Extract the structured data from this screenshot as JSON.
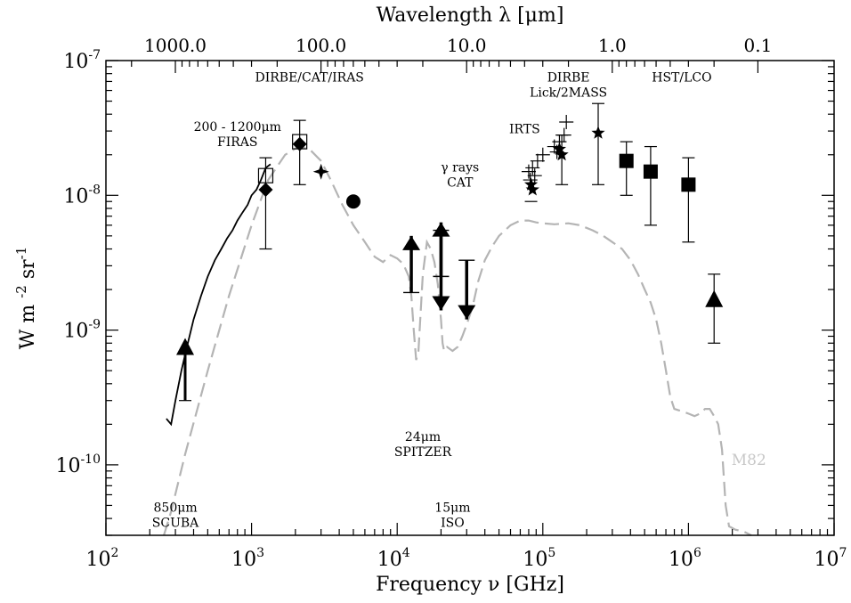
{
  "chart_data": {
    "type": "scatter",
    "title": "",
    "xlabel": "Frequency ν [GHz]",
    "ylabel": "W m -2 sr-1",
    "top_xlabel": "Wavelength λ [μm]",
    "x_scale": "log",
    "y_scale": "log",
    "xlim": [
      100,
      10000000
    ],
    "ylim": [
      3e-11,
      1e-07
    ],
    "x_ticks": [
      {
        "value": 100,
        "base": "10",
        "exp": "2"
      },
      {
        "value": 1000,
        "base": "10",
        "exp": "3"
      },
      {
        "value": 10000,
        "base": "10",
        "exp": "4"
      },
      {
        "value": 100000,
        "base": "10",
        "exp": "5"
      },
      {
        "value": 1000000,
        "base": "10",
        "exp": "6"
      },
      {
        "value": 10000000,
        "base": "10",
        "exp": "7"
      }
    ],
    "y_ticks": [
      {
        "value": 1e-10,
        "base": "10",
        "exp": "-10"
      },
      {
        "value": 1e-09,
        "base": "10",
        "exp": "-9"
      },
      {
        "value": 1e-08,
        "base": "10",
        "exp": "-8"
      },
      {
        "value": 1e-07,
        "base": "10",
        "exp": "-7"
      }
    ],
    "top_ticks": [
      {
        "wavelength_um": 1000,
        "label": "1000.0"
      },
      {
        "wavelength_um": 100,
        "label": "100.0"
      },
      {
        "wavelength_um": 10,
        "label": "10.0"
      },
      {
        "wavelength_um": 1,
        "label": "1.0"
      },
      {
        "wavelength_um": 0.1,
        "label": "0.1"
      }
    ],
    "grid": false,
    "series": [
      {
        "name": "M82",
        "style": "dashed",
        "color": "#b4b4b4",
        "x": [
          250,
          280,
          350,
          500,
          700,
          1000,
          1300,
          1700,
          2100,
          2500,
          3000,
          3500,
          4200,
          5000,
          6000,
          7000,
          8000,
          9000,
          10000,
          11000,
          12000,
          12500,
          13000,
          13500,
          14000,
          15000,
          16000,
          17000,
          18000,
          19000,
          20000,
          20500,
          21000,
          22000,
          24000,
          26000,
          28000,
          30000,
          33000,
          36000,
          40000,
          45000,
          50000,
          60000,
          70000,
          80000,
          90000,
          100000,
          120000,
          150000,
          180000,
          220000,
          260000,
          300000,
          350000,
          400000,
          450000,
          500000,
          550000,
          600000,
          650000,
          700000,
          750000,
          800000,
          900000,
          1000000,
          1100000,
          1200000,
          1300000,
          1400000,
          1500000,
          1600000,
          1700000,
          1800000,
          1900000,
          2100000,
          2400000,
          2700000
        ],
        "y": [
          3e-11,
          4.5e-11,
          1.2e-10,
          5e-10,
          1.8e-09,
          6e-09,
          1.3e-08,
          2e-08,
          2.3e-08,
          2.2e-08,
          1.8e-08,
          1.3e-08,
          8.5e-09,
          6e-09,
          4.5e-09,
          3.5e-09,
          3.2e-09,
          3.6e-09,
          3.4e-09,
          3.1e-09,
          2.5e-09,
          1.8e-09,
          1e-09,
          6e-10,
          7e-10,
          2.6e-09,
          4.5e-09,
          4e-09,
          3.2e-09,
          2.2e-09,
          1.2e-09,
          8e-10,
          7e-10,
          7.5e-10,
          7e-10,
          7.5e-10,
          9e-10,
          1.1e-09,
          1.5e-09,
          2.3e-09,
          3.3e-09,
          4.2e-09,
          5e-09,
          6e-09,
          6.5e-09,
          6.5e-09,
          6.3e-09,
          6.2e-09,
          6.1e-09,
          6.2e-09,
          6e-09,
          5.5e-09,
          5e-09,
          4.5e-09,
          4e-09,
          3.3e-09,
          2.6e-09,
          2e-09,
          1.6e-09,
          1.2e-09,
          8e-10,
          5e-10,
          3.2e-10,
          2.6e-10,
          2.5e-10,
          2.4e-10,
          2.3e-10,
          2.4e-10,
          2.6e-10,
          2.6e-10,
          2.3e-10,
          2e-10,
          1.3e-10,
          5e-11,
          3.5e-11,
          3.3e-11,
          3.2e-11,
          3e-11
        ]
      },
      {
        "name": "FIRAS",
        "style": "solid",
        "color": "#000000",
        "x": [
          260,
          280,
          300,
          330,
          360,
          400,
          450,
          500,
          560,
          620,
          680,
          740,
          800,
          870,
          940,
          1000,
          1080,
          1160,
          1250,
          1350
        ],
        "y": [
          2.2e-10,
          2e-10,
          3e-10,
          5e-10,
          7.5e-10,
          1.2e-09,
          1.8e-09,
          2.5e-09,
          3.3e-09,
          4e-09,
          4.8e-09,
          5.5e-09,
          6.5e-09,
          7.5e-09,
          8.5e-09,
          1e-08,
          1.1e-08,
          1.3e-08,
          1.6e-08,
          1.7e-08
        ]
      }
    ],
    "points": [
      {
        "marker": "triangle-up",
        "x": 350,
        "y": 7.5e-10,
        "err_low": 3e-10,
        "err_high": null,
        "limit": "lower"
      },
      {
        "marker": "diamond",
        "x": 1250,
        "y": 1.1e-08,
        "err_low": 4e-09,
        "err_high": 1.9e-08,
        "limit": null
      },
      {
        "marker": "square-open",
        "x": 1250,
        "y": 1.4e-08,
        "err_low": null,
        "err_high": null,
        "limit": null
      },
      {
        "marker": "square-open",
        "x": 2140,
        "y": 2.5e-08,
        "err_low": null,
        "err_high": null,
        "limit": null
      },
      {
        "marker": "diamond",
        "x": 2140,
        "y": 2.4e-08,
        "err_low": 1.2e-08,
        "err_high": 3.6e-08,
        "limit": null
      },
      {
        "marker": "star4",
        "x": 3000,
        "y": 1.5e-08,
        "err_low": null,
        "err_high": null,
        "limit": null
      },
      {
        "marker": "circle",
        "x": 5000,
        "y": 9e-09,
        "err_low": null,
        "err_high": null,
        "limit": null
      },
      {
        "marker": "arrow-up",
        "x": 12500,
        "y": 1.9e-09,
        "tip": 5e-09,
        "limit": "lower"
      },
      {
        "marker": "arrow-up",
        "x": 20000,
        "y": 2.5e-09,
        "tip": 6.3e-09,
        "limit": "lower"
      },
      {
        "marker": "arrow-down",
        "x": 20000,
        "y": 5.5e-09,
        "tip": 1.4e-09,
        "limit": "upper"
      },
      {
        "marker": "arrow-down",
        "x": 30000,
        "y": 3.3e-09,
        "tip": 1.2e-09,
        "limit": "upper"
      },
      {
        "marker": "cross",
        "x": 80000,
        "y": 1.5e-08,
        "err_low": null,
        "err_high": null,
        "limit": null
      },
      {
        "marker": "cross",
        "x": 82000,
        "y": 1.3e-08,
        "err_low": null,
        "err_high": null,
        "limit": null
      },
      {
        "marker": "cross",
        "x": 85000,
        "y": 1.6e-08,
        "err_low": null,
        "err_high": null,
        "limit": null
      },
      {
        "marker": "cross",
        "x": 88000,
        "y": 1.4e-08,
        "err_low": null,
        "err_high": null,
        "limit": null
      },
      {
        "marker": "cross",
        "x": 92000,
        "y": 1.8e-08,
        "err_low": null,
        "err_high": null,
        "limit": null
      },
      {
        "marker": "cross",
        "x": 100000,
        "y": 2e-08,
        "err_low": null,
        "err_high": null,
        "limit": null
      },
      {
        "marker": "cross",
        "x": 120000,
        "y": 2.3e-08,
        "err_low": null,
        "err_high": null,
        "limit": null
      },
      {
        "marker": "cross",
        "x": 125000,
        "y": 2.1e-08,
        "err_low": null,
        "err_high": null,
        "limit": null
      },
      {
        "marker": "cross",
        "x": 130000,
        "y": 2.5e-08,
        "err_low": null,
        "err_high": null,
        "limit": null
      },
      {
        "marker": "cross",
        "x": 140000,
        "y": 2.8e-08,
        "err_low": null,
        "err_high": null,
        "limit": null
      },
      {
        "marker": "cross",
        "x": 145000,
        "y": 3.5e-08,
        "err_low": null,
        "err_high": null,
        "limit": null
      },
      {
        "marker": "star",
        "x": 83000,
        "y": 1.2e-08,
        "err_low": 9e-09,
        "err_high": null,
        "limit": null
      },
      {
        "marker": "star",
        "x": 85000,
        "y": 1.1e-08,
        "err_low": null,
        "err_high": null,
        "limit": null
      },
      {
        "marker": "star",
        "x": 130000,
        "y": 2.2e-08,
        "err_low": null,
        "err_high": null,
        "limit": null
      },
      {
        "marker": "star",
        "x": 135000,
        "y": 2e-08,
        "err_low": 1.2e-08,
        "err_high": 2.8e-08,
        "limit": null
      },
      {
        "marker": "star",
        "x": 240000,
        "y": 2.9e-08,
        "err_low": 1.2e-08,
        "err_high": 4.8e-08,
        "limit": null
      },
      {
        "marker": "square",
        "x": 375000,
        "y": 1.8e-08,
        "err_low": 1e-08,
        "err_high": 2.5e-08,
        "limit": null
      },
      {
        "marker": "square",
        "x": 550000,
        "y": 1.5e-08,
        "err_low": 6e-09,
        "err_high": 2.3e-08,
        "limit": null
      },
      {
        "marker": "square",
        "x": 1000000,
        "y": 1.2e-08,
        "err_low": 4.5e-09,
        "err_high": 1.9e-08,
        "limit": null
      },
      {
        "marker": "triangle-up",
        "x": 1500000,
        "y": 1.7e-09,
        "err_low": 8e-10,
        "err_high": 2.6e-09,
        "limit": null
      }
    ],
    "annotations": [
      {
        "lines": [
          "DIRBE/CAT/IRAS"
        ],
        "x": 2500,
        "y": 7e-08,
        "anchor": "middle"
      },
      {
        "lines": [
          "200 - 1200μm",
          "FIRAS"
        ],
        "x": 800,
        "y": 3e-08,
        "anchor": "middle"
      },
      {
        "lines": [
          "DIRBE",
          "Lick/2MASS"
        ],
        "x": 150000,
        "y": 7e-08,
        "anchor": "middle"
      },
      {
        "lines": [
          "HST/LCO"
        ],
        "x": 900000,
        "y": 7e-08,
        "anchor": "middle"
      },
      {
        "lines": [
          "IRTS"
        ],
        "x": 75000,
        "y": 2.9e-08,
        "anchor": "middle"
      },
      {
        "lines": [
          "γ rays",
          "CAT"
        ],
        "x": 27000,
        "y": 1.5e-08,
        "anchor": "middle"
      },
      {
        "lines": [
          "24μm",
          "SPITZER"
        ],
        "x": 15000,
        "y": 1.5e-10,
        "anchor": "middle"
      },
      {
        "lines": [
          "850μm",
          "SCUBA"
        ],
        "x": 300,
        "y": 4.5e-11,
        "anchor": "middle"
      },
      {
        "lines": [
          "15μm",
          "ISO"
        ],
        "x": 24000,
        "y": 4.5e-11,
        "anchor": "middle"
      }
    ],
    "series_label": {
      "text": "M82",
      "x": 2600000,
      "y": 1e-10,
      "color": "#c8c8c8"
    }
  }
}
